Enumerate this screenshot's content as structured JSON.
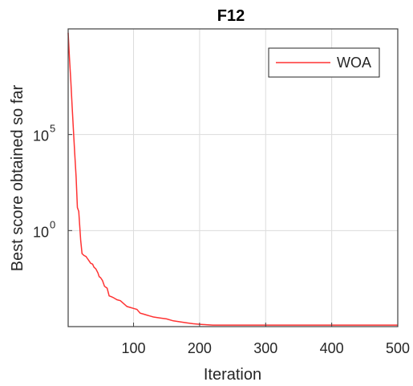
{
  "chart_data": {
    "type": "line",
    "title": "F12",
    "xlabel": "Iteration",
    "ylabel": "Best score obtained so far",
    "xlim": [
      1,
      500
    ],
    "yscale": "log",
    "ylim_log10": [
      -5,
      10.5
    ],
    "xticks": [
      100,
      200,
      300,
      400,
      500
    ],
    "xtick_labels": [
      "100",
      "200",
      "300",
      "400",
      "500"
    ],
    "yticks_log10": [
      0,
      5
    ],
    "ytick_labels": [
      {
        "base": "10",
        "exp": "0"
      },
      {
        "base": "10",
        "exp": "5"
      }
    ],
    "grid": true,
    "legend_position": "top-right",
    "series": [
      {
        "name": "WOA",
        "color": "#ff3333",
        "x": [
          1,
          3,
          5,
          7,
          9,
          11,
          13,
          15,
          17,
          18,
          20,
          22,
          25,
          28,
          30,
          33,
          35,
          38,
          40,
          43,
          46,
          48,
          50,
          53,
          56,
          60,
          63,
          67,
          70,
          75,
          80,
          85,
          90,
          95,
          100,
          105,
          110,
          115,
          120,
          125,
          130,
          140,
          150,
          160,
          170,
          180,
          190,
          200,
          210,
          220,
          240,
          260,
          300,
          350,
          400,
          450,
          500
        ],
        "y_log10": [
          10.3,
          9.0,
          7.8,
          6.5,
          5.2,
          4.0,
          2.8,
          1.2,
          1.0,
          0.5,
          -0.5,
          -1.2,
          -1.3,
          -1.35,
          -1.45,
          -1.6,
          -1.7,
          -1.75,
          -1.9,
          -2.0,
          -2.2,
          -2.4,
          -2.45,
          -2.6,
          -2.9,
          -3.0,
          -3.4,
          -3.45,
          -3.5,
          -3.6,
          -3.65,
          -3.8,
          -3.95,
          -4.0,
          -4.05,
          -4.1,
          -4.3,
          -4.35,
          -4.4,
          -4.45,
          -4.5,
          -4.55,
          -4.6,
          -4.7,
          -4.75,
          -4.8,
          -4.85,
          -4.88,
          -4.9,
          -4.92,
          -4.92,
          -4.92,
          -4.92,
          -4.92,
          -4.92,
          -4.92,
          -4.92
        ]
      }
    ]
  }
}
